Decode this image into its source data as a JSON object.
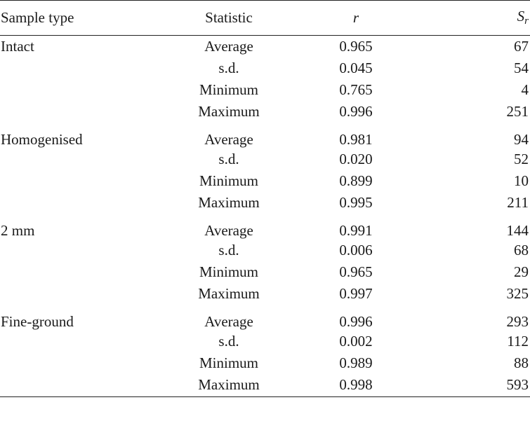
{
  "table": {
    "headers": {
      "sample_type": "Sample type",
      "statistic": "Statistic",
      "r": "r",
      "sr_base": "S",
      "sr_sub": "r"
    },
    "groups": [
      {
        "sample_type": "Intact",
        "rows": [
          {
            "statistic": "Average",
            "r": "0.965",
            "sr": "67"
          },
          {
            "statistic": "s.d.",
            "r": "0.045",
            "sr": "54"
          },
          {
            "statistic": "Minimum",
            "r": "0.765",
            "sr": "4"
          },
          {
            "statistic": "Maximum",
            "r": "0.996",
            "sr": "251"
          }
        ]
      },
      {
        "sample_type": "Homogenised",
        "rows": [
          {
            "statistic": "Average",
            "r": "0.981",
            "sr": "94"
          },
          {
            "statistic": "s.d.",
            "r": "0.020",
            "sr": "52"
          },
          {
            "statistic": "Minimum",
            "r": "0.899",
            "sr": "10"
          },
          {
            "statistic": "Maximum",
            "r": "0.995",
            "sr": "211"
          }
        ]
      },
      {
        "sample_type": "2 mm",
        "rows": [
          {
            "statistic": "Average",
            "r": "0.991",
            "sr": "144"
          },
          {
            "statistic": "s.d.",
            "r": "0.006",
            "sr": "68"
          },
          {
            "statistic": "Minimum",
            "r": "0.965",
            "sr": "29"
          },
          {
            "statistic": "Maximum",
            "r": "0.997",
            "sr": "325"
          }
        ]
      },
      {
        "sample_type": "Fine-ground",
        "rows": [
          {
            "statistic": "Average",
            "r": "0.996",
            "sr": "293"
          },
          {
            "statistic": "s.d.",
            "r": "0.002",
            "sr": "112"
          },
          {
            "statistic": "Minimum",
            "r": "0.989",
            "sr": "88"
          },
          {
            "statistic": "Maximum",
            "r": "0.998",
            "sr": "593"
          }
        ]
      }
    ]
  }
}
